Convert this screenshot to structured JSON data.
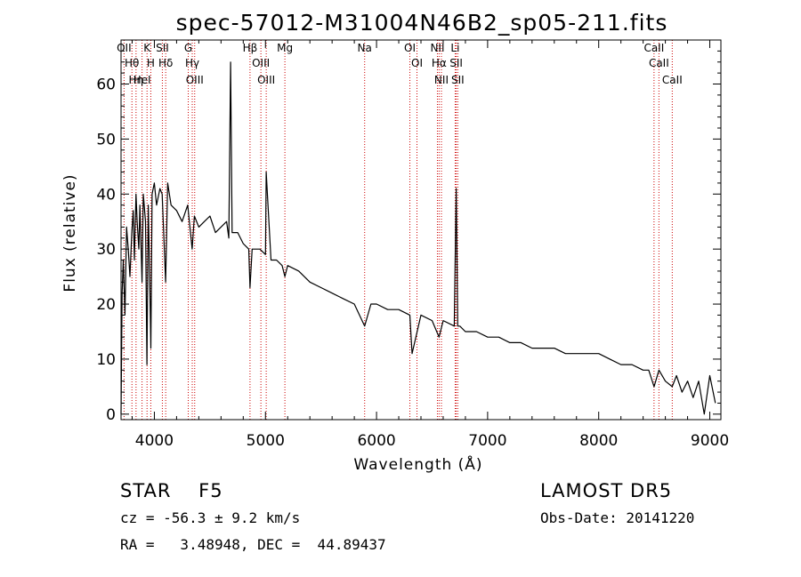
{
  "chart_data": {
    "type": "line",
    "title": "spec-57012-M31004N46B2_sp05-211.fits",
    "xlabel": "Wavelength (Å)",
    "ylabel": "Flux (relative)",
    "xlim": [
      3700,
      9100
    ],
    "ylim": [
      -1,
      68
    ],
    "x_ticks": [
      4000,
      5000,
      6000,
      7000,
      8000,
      9000
    ],
    "x_tick_labels": [
      "4000",
      "5000",
      "6000",
      "7000",
      "8000",
      "9000"
    ],
    "y_ticks": [
      0,
      10,
      20,
      30,
      40,
      50,
      60
    ],
    "y_tick_labels": [
      "0",
      "10",
      "20",
      "30",
      "40",
      "50",
      "60"
    ],
    "grid": false,
    "line_color": "#000000",
    "marker_color": "#cc0000",
    "spectrum": {
      "x": [
        3700,
        3710,
        3720,
        3735,
        3750,
        3765,
        3780,
        3797,
        3810,
        3820,
        3835,
        3845,
        3860,
        3870,
        3889,
        3900,
        3920,
        3933,
        3945,
        3960,
        3968,
        3980,
        4000,
        4020,
        4050,
        4070,
        4101,
        4120,
        4150,
        4200,
        4250,
        4300,
        4340,
        4360,
        4400,
        4450,
        4500,
        4550,
        4600,
        4650,
        4670,
        4686,
        4700,
        4750,
        4800,
        4850,
        4861,
        4880,
        4900,
        4950,
        5000,
        5007,
        5050,
        5100,
        5150,
        5175,
        5200,
        5300,
        5400,
        5500,
        5600,
        5700,
        5800,
        5893,
        5950,
        6000,
        6100,
        6200,
        6300,
        6320,
        6400,
        6500,
        6563,
        6600,
        6700,
        6717,
        6731,
        6750,
        6800,
        6900,
        7000,
        7100,
        7200,
        7300,
        7400,
        7500,
        7600,
        7700,
        7800,
        7900,
        8000,
        8100,
        8200,
        8300,
        8400,
        8450,
        8498,
        8542,
        8600,
        8662,
        8700,
        8750,
        8800,
        8850,
        8900,
        8950,
        9000,
        9050
      ],
      "y": [
        0,
        22,
        28,
        18,
        34,
        30,
        25,
        33,
        37,
        28,
        40,
        35,
        30,
        38,
        24,
        40,
        35,
        9,
        38,
        22,
        12,
        40,
        42,
        38,
        41,
        40,
        24,
        42,
        38,
        37,
        35,
        38,
        30,
        36,
        34,
        35,
        36,
        33,
        34,
        35,
        32,
        64,
        33,
        33,
        31,
        30,
        23,
        30,
        30,
        30,
        29,
        44,
        28,
        28,
        27,
        25,
        27,
        26,
        24,
        23,
        22,
        21,
        20,
        16,
        20,
        20,
        19,
        19,
        18,
        11,
        18,
        17,
        14,
        17,
        16,
        41,
        16,
        16,
        15,
        15,
        14,
        14,
        13,
        13,
        12,
        12,
        12,
        11,
        11,
        11,
        11,
        10,
        9,
        9,
        8,
        8,
        5,
        8,
        6,
        5,
        7,
        4,
        6,
        3,
        6,
        0,
        7,
        2
      ]
    },
    "line_markers": [
      {
        "label": "OII",
        "x": 3727
      },
      {
        "label": "Hθ",
        "x": 3798
      },
      {
        "label": "Hη",
        "x": 3835
      },
      {
        "label": "HeI",
        "x": 3889
      },
      {
        "label": "K",
        "x": 3934
      },
      {
        "label": "H",
        "x": 3968
      },
      {
        "label": "SII",
        "x": 4072
      },
      {
        "label": "Hδ",
        "x": 4102
      },
      {
        "label": "G",
        "x": 4305
      },
      {
        "label": "Hγ",
        "x": 4341
      },
      {
        "label": "OIII",
        "x": 4363
      },
      {
        "label": "Hβ",
        "x": 4861
      },
      {
        "label": "OIII",
        "x": 4959
      },
      {
        "label": "OIII",
        "x": 5007
      },
      {
        "label": "Mg",
        "x": 5175
      },
      {
        "label": "Na",
        "x": 5893
      },
      {
        "label": "OI",
        "x": 6300
      },
      {
        "label": "OI",
        "x": 6364
      },
      {
        "label": "NII",
        "x": 6548
      },
      {
        "label": "Hα",
        "x": 6563
      },
      {
        "label": "NII",
        "x": 6584
      },
      {
        "label": "Li",
        "x": 6708
      },
      {
        "label": "SII",
        "x": 6717
      },
      {
        "label": "SII",
        "x": 6731
      },
      {
        "label": "CaII",
        "x": 8498
      },
      {
        "label": "CaII",
        "x": 8542
      },
      {
        "label": "CaII",
        "x": 8662
      }
    ]
  },
  "info": {
    "class_line": "STAR    F5",
    "survey": "LAMOST DR5",
    "cz_line": "cz = -56.3 ± 9.2 km/s",
    "obs_date": "Obs-Date: 20141220",
    "radec_line": "RA =   3.48948, DEC =  44.89437"
  }
}
